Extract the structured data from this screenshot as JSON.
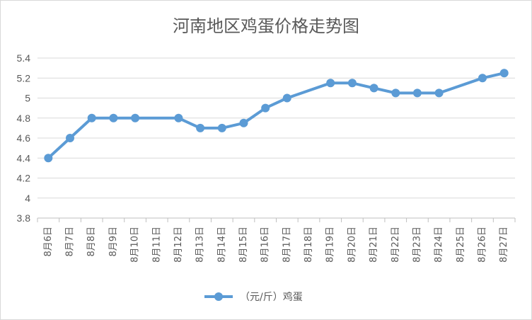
{
  "chart_data": {
    "type": "line",
    "title": "河南地区鸡蛋价格走势图",
    "xlabel": "",
    "ylabel": "",
    "ylim": [
      3.8,
      5.4
    ],
    "ytick_step": 0.2,
    "yticks": [
      "3.8",
      "4",
      "4.2",
      "4.4",
      "4.6",
      "4.8",
      "5",
      "5.2",
      "5.4"
    ],
    "grid": true,
    "legend_position": "bottom",
    "categories": [
      "8月6日",
      "8月7日",
      "8月8日",
      "8月9日",
      "8月10日",
      "8月11日",
      "8月12日",
      "8月13日",
      "8月14日",
      "8月15日",
      "8月16日",
      "8月17日",
      "8月18日",
      "8月19日",
      "8月20日",
      "8月21日",
      "8月22日",
      "8月23日",
      "8月24日",
      "8月25日",
      "8月26日",
      "8月27日"
    ],
    "series": [
      {
        "name": "（元/斤）鸡蛋",
        "color": "#5b9bd5",
        "values": [
          4.4,
          4.6,
          4.8,
          4.8,
          4.8,
          null,
          4.8,
          4.7,
          4.7,
          4.75,
          4.9,
          5.0,
          null,
          5.15,
          5.15,
          5.1,
          5.05,
          5.05,
          5.05,
          null,
          5.2,
          5.25
        ]
      }
    ]
  },
  "colors": {
    "gridline": "#d9d9d9",
    "axis": "#bfbfbf",
    "text": "#595959"
  }
}
